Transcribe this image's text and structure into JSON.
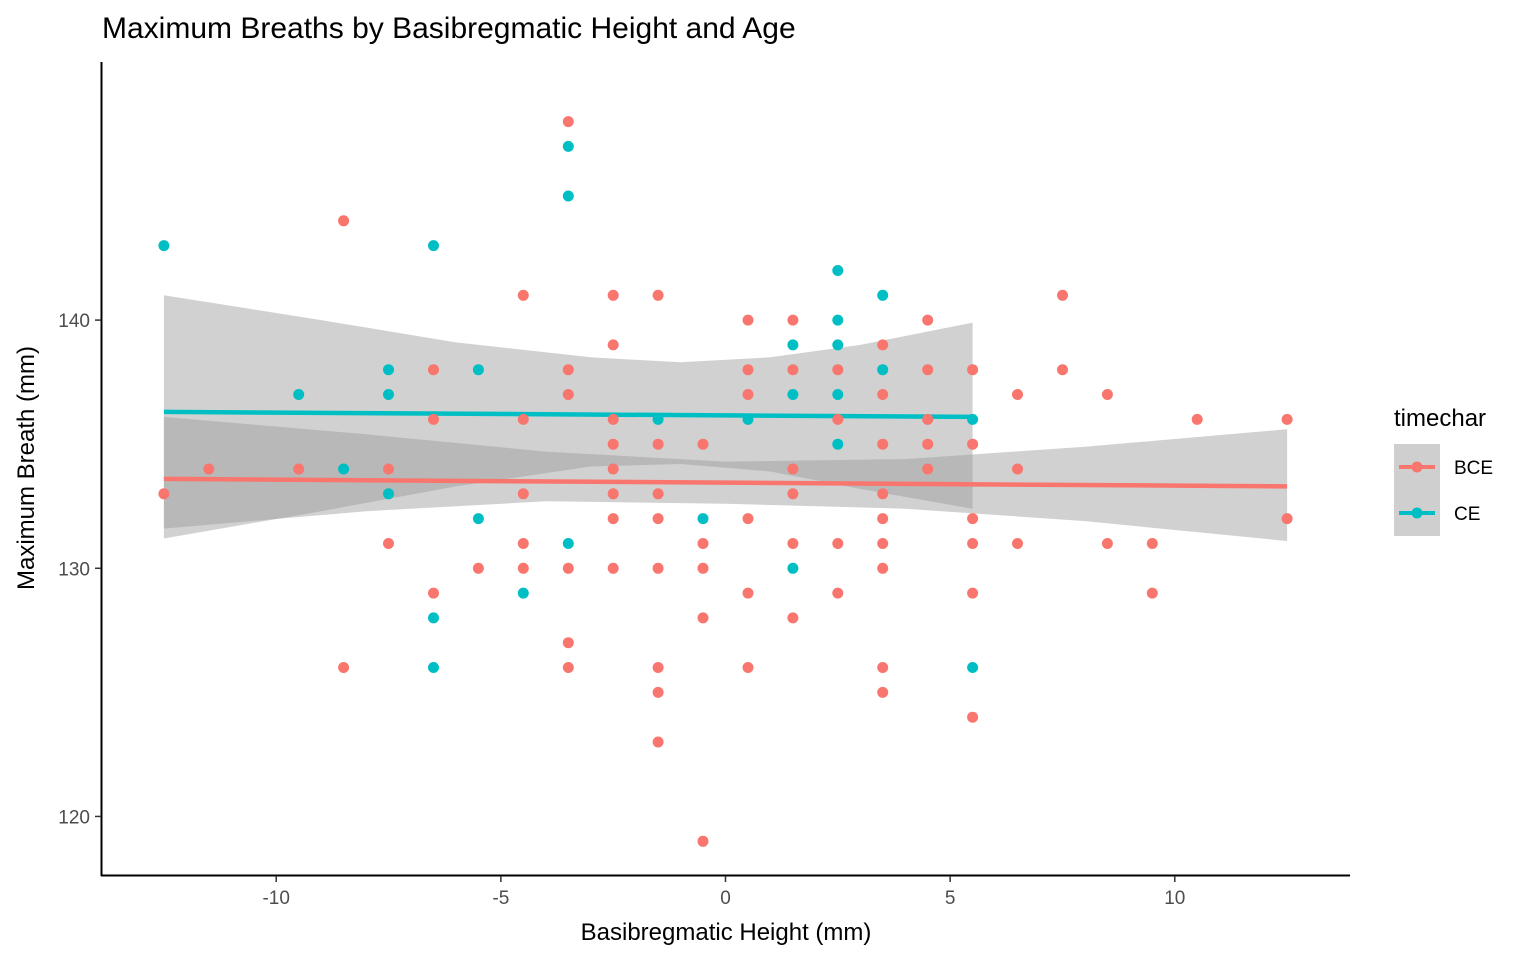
{
  "chart_data": {
    "type": "scatter",
    "title": "Maximum Breaths by Basibregmatic Height and Age",
    "xlabel": "Basibregmatic Height (mm)",
    "ylabel": "Maximum Breath (mm)",
    "xlim": [
      -13.9,
      13.9
    ],
    "ylim": [
      117.6,
      150.4
    ],
    "x_ticks": [
      -10,
      -5,
      0,
      5,
      10
    ],
    "x_tick_labels": [
      "-10",
      "-5",
      "0",
      "5",
      "10"
    ],
    "y_ticks": [
      120,
      130,
      140
    ],
    "y_tick_labels": [
      "120",
      "130",
      "140"
    ],
    "grid": false,
    "legend": {
      "title": "timechar",
      "position": "right",
      "entries": [
        "BCE",
        "CE"
      ]
    },
    "series": [
      {
        "name": "BCE",
        "color": "#F8766D",
        "points": [
          [
            -12.5,
            133
          ],
          [
            -11.5,
            134
          ],
          [
            -9.5,
            134
          ],
          [
            -8.5,
            144
          ],
          [
            -8.5,
            126
          ],
          [
            -7.5,
            134
          ],
          [
            -7.5,
            131
          ],
          [
            -6.5,
            138
          ],
          [
            -6.5,
            136
          ],
          [
            -6.5,
            129
          ],
          [
            -5.5,
            130
          ],
          [
            -4.5,
            141
          ],
          [
            -4.5,
            136
          ],
          [
            -4.5,
            133
          ],
          [
            -4.5,
            131
          ],
          [
            -4.5,
            130
          ],
          [
            -3.5,
            148
          ],
          [
            -3.5,
            138
          ],
          [
            -3.5,
            137
          ],
          [
            -3.5,
            130
          ],
          [
            -3.5,
            127
          ],
          [
            -3.5,
            126
          ],
          [
            -2.5,
            141
          ],
          [
            -2.5,
            139
          ],
          [
            -2.5,
            136
          ],
          [
            -2.5,
            135
          ],
          [
            -2.5,
            134
          ],
          [
            -2.5,
            133
          ],
          [
            -2.5,
            132
          ],
          [
            -2.5,
            130
          ],
          [
            -1.5,
            141
          ],
          [
            -1.5,
            135
          ],
          [
            -1.5,
            133
          ],
          [
            -1.5,
            132
          ],
          [
            -1.5,
            130
          ],
          [
            -1.5,
            126
          ],
          [
            -1.5,
            125
          ],
          [
            -1.5,
            123
          ],
          [
            -0.5,
            135
          ],
          [
            -0.5,
            131
          ],
          [
            -0.5,
            130
          ],
          [
            -0.5,
            128
          ],
          [
            -0.5,
            119
          ],
          [
            0.5,
            140
          ],
          [
            0.5,
            138
          ],
          [
            0.5,
            137
          ],
          [
            0.5,
            132
          ],
          [
            0.5,
            129
          ],
          [
            0.5,
            126
          ],
          [
            1.5,
            140
          ],
          [
            1.5,
            138
          ],
          [
            1.5,
            134
          ],
          [
            1.5,
            133
          ],
          [
            1.5,
            131
          ],
          [
            1.5,
            128
          ],
          [
            2.5,
            138
          ],
          [
            2.5,
            136
          ],
          [
            2.5,
            131
          ],
          [
            2.5,
            129
          ],
          [
            3.5,
            139
          ],
          [
            3.5,
            137
          ],
          [
            3.5,
            135
          ],
          [
            3.5,
            133
          ],
          [
            3.5,
            132
          ],
          [
            3.5,
            131
          ],
          [
            3.5,
            130
          ],
          [
            3.5,
            126
          ],
          [
            3.5,
            125
          ],
          [
            4.5,
            140
          ],
          [
            4.5,
            138
          ],
          [
            4.5,
            136
          ],
          [
            4.5,
            135
          ],
          [
            4.5,
            134
          ],
          [
            5.5,
            138
          ],
          [
            5.5,
            135
          ],
          [
            5.5,
            132
          ],
          [
            5.5,
            131
          ],
          [
            5.5,
            129
          ],
          [
            5.5,
            124
          ],
          [
            6.5,
            137
          ],
          [
            6.5,
            134
          ],
          [
            6.5,
            131
          ],
          [
            7.5,
            141
          ],
          [
            7.5,
            138
          ],
          [
            8.5,
            137
          ],
          [
            8.5,
            131
          ],
          [
            9.5,
            131
          ],
          [
            9.5,
            129
          ],
          [
            10.5,
            136
          ],
          [
            12.5,
            136
          ],
          [
            12.5,
            132
          ]
        ],
        "fit_line": {
          "x": [
            -12.5,
            12.5
          ],
          "y": [
            133.6,
            133.3
          ]
        },
        "ci_ribbon": {
          "x": [
            -12.5,
            -8,
            -4,
            0,
            4,
            8,
            12.5
          ],
          "upper": [
            136.1,
            135.4,
            134.7,
            134.3,
            134.4,
            134.9,
            135.6
          ],
          "lower": [
            131.6,
            132.3,
            132.7,
            132.6,
            132.4,
            131.9,
            131.1
          ]
        }
      },
      {
        "name": "CE",
        "color": "#00BFC4",
        "points": [
          [
            -12.5,
            143
          ],
          [
            -9.5,
            137
          ],
          [
            -8.5,
            134
          ],
          [
            -7.5,
            138
          ],
          [
            -7.5,
            137
          ],
          [
            -7.5,
            133
          ],
          [
            -6.5,
            143
          ],
          [
            -6.5,
            128
          ],
          [
            -6.5,
            126
          ],
          [
            -5.5,
            138
          ],
          [
            -5.5,
            132
          ],
          [
            -4.5,
            129
          ],
          [
            -3.5,
            147
          ],
          [
            -3.5,
            145
          ],
          [
            -3.5,
            131
          ],
          [
            -1.5,
            136
          ],
          [
            -0.5,
            132
          ],
          [
            0.5,
            136
          ],
          [
            1.5,
            139
          ],
          [
            1.5,
            137
          ],
          [
            1.5,
            130
          ],
          [
            2.5,
            142
          ],
          [
            2.5,
            140
          ],
          [
            2.5,
            139
          ],
          [
            2.5,
            137
          ],
          [
            2.5,
            135
          ],
          [
            3.5,
            141
          ],
          [
            3.5,
            138
          ],
          [
            5.5,
            136
          ],
          [
            5.5,
            126
          ]
        ],
        "fit_line": {
          "x": [
            -12.5,
            5.5
          ],
          "y": [
            136.3,
            136.1
          ]
        },
        "ci_ribbon": {
          "x": [
            -12.5,
            -9,
            -6,
            -3,
            -1,
            1,
            3,
            5.5
          ],
          "upper": [
            141.0,
            140.0,
            139.1,
            138.5,
            138.3,
            138.5,
            139.0,
            139.9
          ],
          "lower": [
            131.2,
            132.3,
            133.3,
            134.1,
            134.2,
            133.9,
            133.2,
            132.4
          ]
        }
      }
    ],
    "ribbon_color": "#999999"
  }
}
